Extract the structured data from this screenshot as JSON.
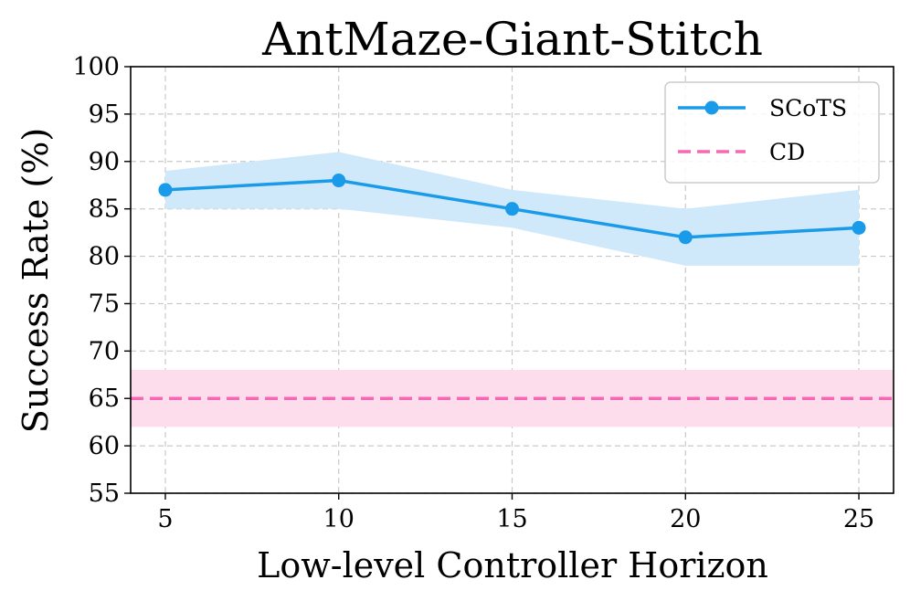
{
  "chart_data": {
    "type": "line",
    "title": "AntMaze-Giant-Stitch",
    "xlabel": "Low-level Controller Horizon",
    "ylabel": "Success Rate (%)",
    "xlim": [
      4,
      26
    ],
    "ylim": [
      55,
      100
    ],
    "xticks": [
      5,
      10,
      15,
      20,
      25
    ],
    "yticks": [
      55,
      60,
      65,
      70,
      75,
      80,
      85,
      90,
      95,
      100
    ],
    "grid": true,
    "legend_position": "top-right",
    "series": [
      {
        "name": "SCoTS",
        "style": "solid line with circle markers",
        "color": "#1a9bea",
        "band_color": "#cfe9fb",
        "x": [
          5,
          10,
          15,
          20,
          25
        ],
        "y": [
          87,
          88,
          85,
          82,
          83
        ],
        "band_low": [
          85,
          85,
          83,
          79,
          79
        ],
        "band_high": [
          89,
          91,
          87,
          85,
          87
        ]
      },
      {
        "name": "CD",
        "style": "dashed horizontal line",
        "color": "#f768b4",
        "band_color": "#fddcec",
        "y": 65,
        "band_low": 62,
        "band_high": 68
      }
    ]
  }
}
